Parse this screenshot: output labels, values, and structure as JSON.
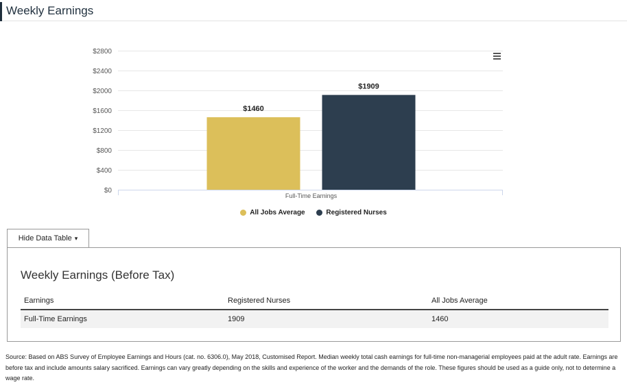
{
  "header": {
    "title": "Weekly Earnings"
  },
  "chart_data": {
    "type": "bar",
    "categories": [
      "Full-Time Earnings"
    ],
    "series": [
      {
        "name": "All Jobs Average",
        "values": [
          1460
        ],
        "color": "#dcbf5a",
        "label": "$1460"
      },
      {
        "name": "Registered Nurses",
        "values": [
          1909
        ],
        "color": "#2d3e4f",
        "label": "$1909"
      }
    ],
    "ylim": [
      0,
      2800
    ],
    "yticks": [
      0,
      400,
      800,
      1200,
      1600,
      2000,
      2400,
      2800
    ],
    "ytick_labels": [
      "$0",
      "$400",
      "$800",
      "$1200",
      "$1600",
      "$2000",
      "$2400",
      "$2800"
    ],
    "grid": true,
    "legend_position": "bottom-center",
    "menu_icon": "hamburger-icon"
  },
  "toggle": {
    "label": "Hide Data Table",
    "caret": "▾"
  },
  "table": {
    "title": "Weekly Earnings (Before Tax)",
    "headers": [
      "Earnings",
      "Registered Nurses",
      "All Jobs Average"
    ],
    "rows": [
      [
        "Full-Time Earnings",
        "1909",
        "1460"
      ]
    ]
  },
  "source": "Source: Based on ABS Survey of Employee Earnings and Hours (cat. no. 6306.0), May 2018, Customised Report. Median weekly total cash earnings for full-time non-managerial employees paid at the adult rate. Earnings are before tax and include amounts salary sacrificed. Earnings can vary greatly depending on the skills and experience of the worker and the demands of the role. These figures should be used as a guide only, not to determine a wage rate."
}
